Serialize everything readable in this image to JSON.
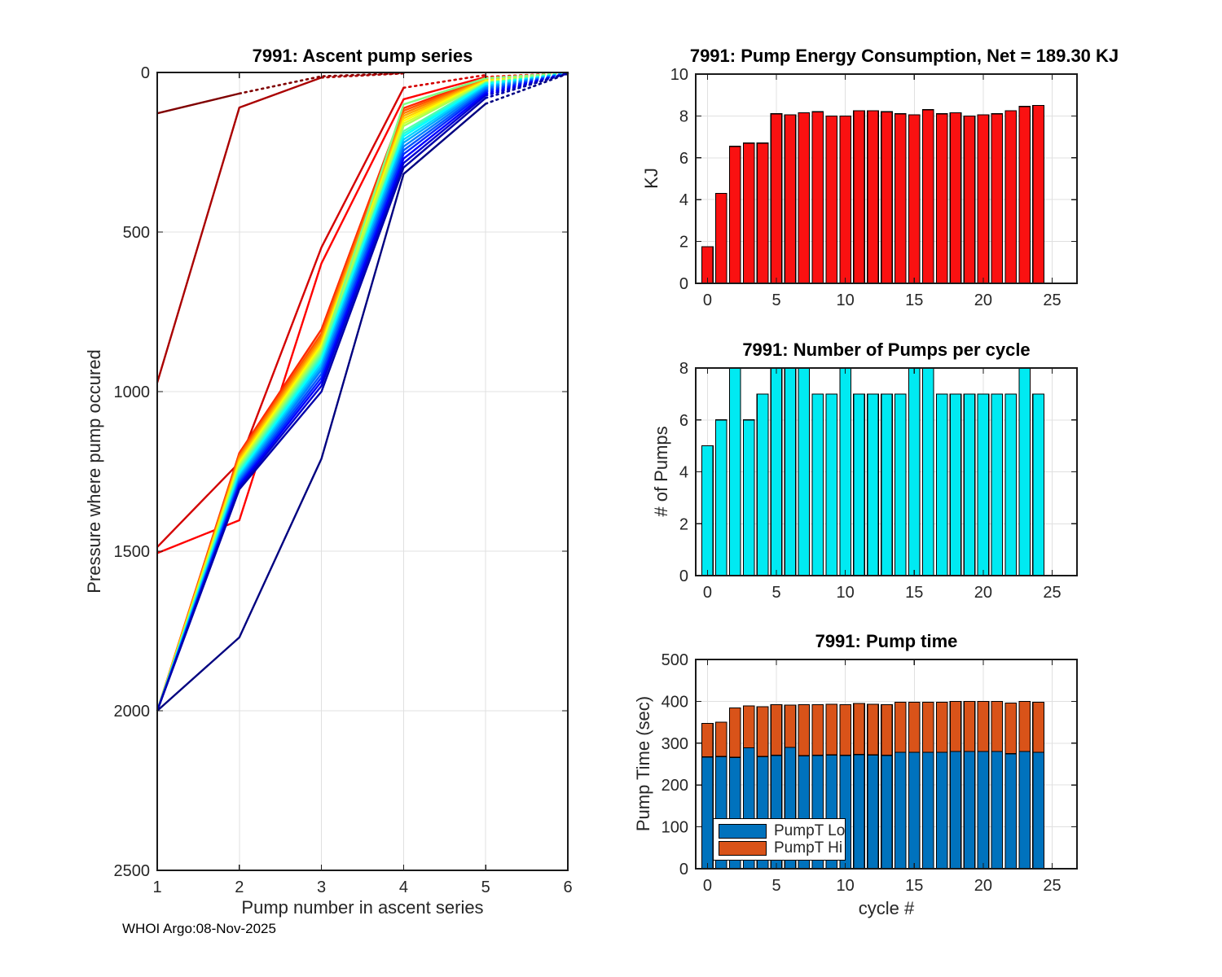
{
  "figure": {
    "footer": "WHOI Argo:08-Nov-2025"
  },
  "chart_data": [
    {
      "id": "ascent",
      "type": "line",
      "title": "7991: Ascent pump series",
      "xlabel": "Pump number in ascent series",
      "ylabel": "Pressure where pump occured",
      "xlim": [
        1,
        6
      ],
      "ylim": [
        0,
        2500
      ],
      "y_inverted": true,
      "grid": true,
      "xticks": [
        1,
        2,
        3,
        4,
        5,
        6
      ],
      "yticks": [
        0,
        500,
        1000,
        1500,
        2000,
        2500
      ],
      "series": [
        {
          "name": "cycle-0",
          "color": "#800000",
          "solid": [
            [
              1,
              128
            ],
            [
              2,
              66
            ]
          ],
          "dotted": [
            [
              2,
              66
            ],
            [
              3,
              12
            ],
            [
              4,
              2
            ]
          ]
        },
        {
          "name": "cycle-1",
          "color": "#AA0000",
          "solid": [
            [
              1,
              972
            ],
            [
              2,
              110
            ],
            [
              3,
              16
            ]
          ],
          "dotted": [
            [
              3,
              16
            ],
            [
              4,
              3
            ]
          ]
        },
        {
          "name": "cycle-2",
          "color": "#D40000",
          "solid": [
            [
              1,
              1487
            ],
            [
              2,
              1222
            ],
            [
              3,
              548
            ],
            [
              4,
              48
            ]
          ],
          "dotted": [
            [
              4,
              48
            ],
            [
              5,
              8
            ]
          ]
        },
        {
          "name": "cycle-3",
          "color": "#FF0000",
          "solid": [
            [
              1,
              1506
            ],
            [
              2,
              1403
            ],
            [
              3,
              598
            ],
            [
              4,
              84
            ],
            [
              5,
              14
            ]
          ],
          "dotted": [
            [
              5,
              14
            ],
            [
              6,
              2
            ]
          ]
        },
        {
          "name": "cycle-4",
          "color": "#FF2A00",
          "solid": [
            [
              1,
              2000
            ],
            [
              2,
              1192
            ],
            [
              3,
              805
            ],
            [
              4,
              112
            ],
            [
              5,
              17
            ]
          ],
          "dotted": [
            [
              5,
              17
            ],
            [
              6,
              2
            ]
          ]
        },
        {
          "name": "cycle-5",
          "color": "#FF5500",
          "solid": [
            [
              1,
              2000
            ],
            [
              2,
              1198
            ],
            [
              3,
              818
            ],
            [
              4,
              120
            ],
            [
              5,
              19
            ]
          ],
          "dotted": [
            [
              5,
              19
            ],
            [
              6,
              2
            ]
          ]
        },
        {
          "name": "cycle-6",
          "color": "#FF8000",
          "solid": [
            [
              1,
              2000
            ],
            [
              2,
              1204
            ],
            [
              3,
              828
            ],
            [
              4,
              128
            ],
            [
              5,
              21
            ]
          ],
          "dotted": [
            [
              5,
              21
            ],
            [
              6,
              2
            ]
          ]
        },
        {
          "name": "cycle-7",
          "color": "#FFAA00",
          "solid": [
            [
              1,
              2000
            ],
            [
              2,
              1210
            ],
            [
              3,
              838
            ],
            [
              4,
              136
            ],
            [
              5,
              23
            ]
          ],
          "dotted": [
            [
              5,
              23
            ],
            [
              6,
              2
            ]
          ]
        },
        {
          "name": "cycle-8",
          "color": "#FFD400",
          "solid": [
            [
              1,
              2000
            ],
            [
              2,
              1216
            ],
            [
              3,
              846
            ],
            [
              4,
              144
            ],
            [
              5,
              25
            ]
          ],
          "dotted": [
            [
              5,
              25
            ],
            [
              6,
              2
            ]
          ]
        },
        {
          "name": "cycle-9",
          "color": "#FFFF00",
          "solid": [
            [
              1,
              2000
            ],
            [
              2,
              1222
            ],
            [
              3,
              854
            ],
            [
              4,
              152
            ],
            [
              5,
              27
            ]
          ],
          "dotted": [
            [
              5,
              27
            ],
            [
              6,
              2
            ]
          ]
        },
        {
          "name": "cycle-10",
          "color": "#D4FF2A",
          "solid": [
            [
              1,
              2000
            ],
            [
              2,
              1228
            ],
            [
              3,
              862
            ],
            [
              4,
              160
            ],
            [
              5,
              29
            ]
          ],
          "dotted": [
            [
              5,
              29
            ],
            [
              6,
              2
            ]
          ]
        },
        {
          "name": "cycle-11",
          "color": "#AAFF55",
          "solid": [
            [
              1,
              2000
            ],
            [
              2,
              1234
            ],
            [
              3,
              870
            ],
            [
              4,
              168
            ],
            [
              5,
              31
            ]
          ],
          "dotted": [
            [
              5,
              31
            ],
            [
              6,
              2
            ]
          ]
        },
        {
          "name": "cycle-12",
          "color": "#80FF80",
          "solid": [
            [
              1,
              2000
            ],
            [
              2,
              1240
            ],
            [
              3,
              878
            ],
            [
              4,
              100
            ],
            [
              5,
              18
            ]
          ],
          "dotted": [
            [
              5,
              18
            ],
            [
              6,
              2
            ]
          ]
        },
        {
          "name": "cycle-13",
          "color": "#55FFAA",
          "solid": [
            [
              1,
              2000
            ],
            [
              2,
              1246
            ],
            [
              3,
              886
            ],
            [
              4,
              184
            ],
            [
              5,
              33
            ]
          ],
          "dotted": [
            [
              5,
              33
            ],
            [
              6,
              2
            ]
          ]
        },
        {
          "name": "cycle-14",
          "color": "#2AFFD4",
          "solid": [
            [
              1,
              2000
            ],
            [
              2,
              1252
            ],
            [
              3,
              894
            ],
            [
              4,
              192
            ],
            [
              5,
              35
            ]
          ],
          "dotted": [
            [
              5,
              35
            ],
            [
              6,
              2
            ]
          ]
        },
        {
          "name": "cycle-15",
          "color": "#00FFFF",
          "solid": [
            [
              1,
              2000
            ],
            [
              2,
              1258
            ],
            [
              3,
              902
            ],
            [
              4,
              200
            ],
            [
              5,
              38
            ]
          ],
          "dotted": [
            [
              5,
              38
            ],
            [
              6,
              2
            ]
          ]
        },
        {
          "name": "cycle-16",
          "color": "#00D4FF",
          "solid": [
            [
              1,
              2000
            ],
            [
              2,
              1264
            ],
            [
              3,
              912
            ],
            [
              4,
              210
            ],
            [
              5,
              42
            ]
          ],
          "dotted": [
            [
              5,
              42
            ],
            [
              6,
              2
            ]
          ]
        },
        {
          "name": "cycle-17",
          "color": "#00AAFF",
          "solid": [
            [
              1,
              2000
            ],
            [
              2,
              1270
            ],
            [
              3,
              922
            ],
            [
              4,
              220
            ],
            [
              5,
              46
            ]
          ],
          "dotted": [
            [
              5,
              46
            ],
            [
              6,
              2
            ]
          ]
        },
        {
          "name": "cycle-18",
          "color": "#0080FF",
          "solid": [
            [
              1,
              2000
            ],
            [
              2,
              1276
            ],
            [
              3,
              932
            ],
            [
              4,
              232
            ],
            [
              5,
              50
            ]
          ],
          "dotted": [
            [
              5,
              50
            ],
            [
              6,
              3
            ]
          ]
        },
        {
          "name": "cycle-19",
          "color": "#0055FF",
          "solid": [
            [
              1,
              2000
            ],
            [
              2,
              1282
            ],
            [
              3,
              944
            ],
            [
              4,
              244
            ],
            [
              5,
              55
            ]
          ],
          "dotted": [
            [
              5,
              55
            ],
            [
              6,
              3
            ]
          ]
        },
        {
          "name": "cycle-20",
          "color": "#002AFF",
          "solid": [
            [
              1,
              2000
            ],
            [
              2,
              1288
            ],
            [
              3,
              956
            ],
            [
              4,
              256
            ],
            [
              5,
              60
            ]
          ],
          "dotted": [
            [
              5,
              60
            ],
            [
              6,
              3
            ]
          ]
        },
        {
          "name": "cycle-21",
          "color": "#0000FF",
          "solid": [
            [
              1,
              2000
            ],
            [
              2,
              1294
            ],
            [
              3,
              968
            ],
            [
              4,
              270
            ],
            [
              5,
              66
            ]
          ],
          "dotted": [
            [
              5,
              66
            ],
            [
              6,
              3
            ]
          ]
        },
        {
          "name": "cycle-22",
          "color": "#0000D4",
          "solid": [
            [
              1,
              2000
            ],
            [
              2,
              1300
            ],
            [
              3,
              982
            ],
            [
              4,
              284
            ],
            [
              5,
              72
            ]
          ],
          "dotted": [
            [
              5,
              72
            ],
            [
              6,
              3
            ]
          ]
        },
        {
          "name": "cycle-23",
          "color": "#0000AA",
          "solid": [
            [
              1,
              2000
            ],
            [
              2,
              1306
            ],
            [
              3,
              1000
            ],
            [
              4,
              298
            ],
            [
              5,
              80
            ]
          ],
          "dotted": [
            [
              5,
              80
            ],
            [
              6,
              3
            ]
          ]
        },
        {
          "name": "cycle-24",
          "color": "#000080",
          "solid": [
            [
              1,
              2000
            ],
            [
              2,
              1770
            ],
            [
              3,
              1210
            ],
            [
              4,
              318
            ],
            [
              5,
              98
            ]
          ],
          "dotted": [
            [
              5,
              98
            ],
            [
              6,
              4
            ]
          ]
        }
      ]
    },
    {
      "id": "energy",
      "type": "bar",
      "title": "7991: Pump Energy Consumption,  Net = 189.30 KJ",
      "ylabel": "KJ",
      "xlim": [
        -0.85,
        26.8
      ],
      "ylim": [
        0,
        10
      ],
      "grid": true,
      "xticks": [
        0,
        5,
        10,
        15,
        20,
        25
      ],
      "yticks": [
        0,
        2,
        4,
        6,
        8,
        10
      ],
      "bar_color": "#FA1111",
      "bar_edge": "#000000",
      "categories": [
        0,
        1,
        2,
        3,
        4,
        5,
        6,
        7,
        8,
        9,
        10,
        11,
        12,
        13,
        14,
        15,
        16,
        17,
        18,
        19,
        20,
        21,
        22,
        23,
        24
      ],
      "values": [
        1.75,
        4.3,
        6.55,
        6.7,
        6.7,
        8.1,
        8.05,
        8.15,
        8.2,
        8.0,
        8.0,
        8.25,
        8.25,
        8.2,
        8.1,
        8.05,
        8.3,
        8.1,
        8.15,
        8.0,
        8.05,
        8.1,
        8.25,
        8.45,
        8.5
      ]
    },
    {
      "id": "pumps",
      "type": "bar",
      "title": "7991: Number of Pumps per cycle",
      "ylabel": "# of Pumps",
      "xlim": [
        -0.85,
        26.8
      ],
      "ylim": [
        0,
        8
      ],
      "grid": true,
      "xticks": [
        0,
        5,
        10,
        15,
        20,
        25
      ],
      "yticks": [
        0,
        2,
        4,
        6,
        8
      ],
      "bar_color": "#00EAF2",
      "bar_edge": "#000000",
      "categories": [
        0,
        1,
        2,
        3,
        4,
        5,
        6,
        7,
        8,
        9,
        10,
        11,
        12,
        13,
        14,
        15,
        16,
        17,
        18,
        19,
        20,
        21,
        22,
        23,
        24
      ],
      "values": [
        5,
        6,
        8,
        6,
        7,
        8,
        8,
        8,
        7,
        7,
        8,
        7,
        7,
        7,
        7,
        8,
        8,
        7,
        7,
        7,
        7,
        7,
        7,
        8,
        7
      ]
    },
    {
      "id": "pumptime",
      "type": "stacked-bar",
      "title": "7991: Pump time",
      "xlabel": "cycle #",
      "ylabel": "Pump Time (sec)",
      "xlim": [
        -0.85,
        26.8
      ],
      "ylim": [
        0,
        500
      ],
      "grid": true,
      "xticks": [
        0,
        5,
        10,
        15,
        20,
        25
      ],
      "yticks": [
        0,
        100,
        200,
        300,
        400,
        500
      ],
      "colors": {
        "lo": "#0072BD",
        "hi": "#D95319"
      },
      "bar_edge": "#000000",
      "legend": [
        "PumpT Lo",
        "PumpT Hi"
      ],
      "categories": [
        0,
        1,
        2,
        3,
        4,
        5,
        6,
        7,
        8,
        9,
        10,
        11,
        12,
        13,
        14,
        15,
        16,
        17,
        18,
        19,
        20,
        21,
        22,
        23,
        24
      ],
      "series": [
        {
          "name": "PumpT Lo",
          "values": [
            267,
            268,
            266,
            289,
            268,
            271,
            290,
            270,
            271,
            272,
            271,
            273,
            272,
            271,
            278,
            278,
            278,
            278,
            280,
            280,
            280,
            280,
            275,
            280,
            278
          ]
        },
        {
          "name": "PumpT Hi",
          "values": [
            80,
            82,
            118,
            100,
            119,
            121,
            101,
            122,
            121,
            121,
            121,
            122,
            121,
            121,
            120,
            120,
            120,
            120,
            120,
            120,
            120,
            120,
            121,
            120,
            120
          ]
        }
      ]
    }
  ]
}
